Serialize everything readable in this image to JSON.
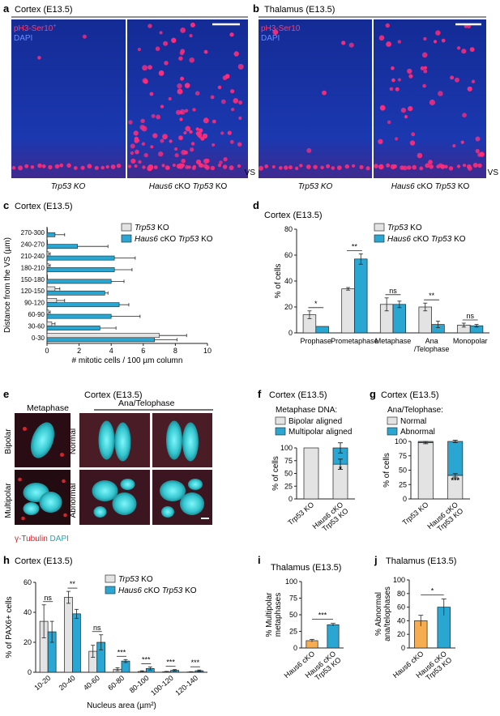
{
  "colors": {
    "ctrl": "#e3e3e3",
    "cko": "#29a7d2",
    "haus": "#f6ad52",
    "mic_bg": "#132d9e",
    "pink": "#ff2c7a",
    "cyan": "#39c9cf",
    "tubulin_red": "#d3262c",
    "ana_bg": "#4a1c26"
  },
  "panel_labels": {
    "a": "a",
    "b": "b",
    "c": "c",
    "d": "d",
    "e": "e",
    "f": "f",
    "g": "g",
    "h": "h",
    "i": "i",
    "j": "j"
  },
  "panel_a": {
    "title": "Cortex (E13.5)",
    "stain1": "pH3-Ser10",
    "stain1_sup": "+",
    "stain2": "DAPI",
    "left_label": "Trp53 KO",
    "right_label_i": "Haus6",
    "right_label": "cKO",
    "right_label_i2": "Trp53",
    "right_label_end": "KO",
    "vs": "VS"
  },
  "panel_b": {
    "title": "Thalamus (E13.5)",
    "stain1": "pH3-Ser10",
    "stain2": "DAPI",
    "left_label": "Trp53 KO",
    "right_label_i": "Haus6",
    "right_label": "cKO",
    "right_label_i2": "Trp53",
    "right_label_end": "KO",
    "vs": "VS"
  },
  "legend": {
    "ctrl_i": "Trp53",
    "ctrl": "KO",
    "cko_i": "Haus6",
    "cko_mid": "cKO",
    "cko_i2": "Trp53",
    "cko_end": "KO"
  },
  "panel_c": {
    "title": "Cortex (E13.5)",
    "chart_data": {
      "type": "bar",
      "orientation": "horizontal",
      "ylabel": "Distance from the VS (µm)",
      "xlabel": "# mitotic cells / 100 µm column",
      "xlim": [
        0,
        10
      ],
      "xticks": [
        "0",
        "2",
        "4",
        "6",
        "8",
        "10"
      ],
      "categories": [
        "270-300",
        "240-270",
        "210-240",
        "180-210",
        "150-180",
        "120-150",
        "90-120",
        "60-90",
        "30-60",
        "0-30"
      ],
      "series": [
        {
          "name": "Trp53 KO",
          "values": [
            0,
            0,
            0.1,
            0.1,
            0,
            0.5,
            0.6,
            0.1,
            0.3,
            7.0
          ],
          "err": [
            0,
            0,
            0.1,
            0.1,
            0,
            0.3,
            0.5,
            0.1,
            0.2,
            1.7
          ]
        },
        {
          "name": "Haus6 cKO Trp53 KO",
          "values": [
            0.5,
            1.9,
            4.2,
            4.2,
            4.0,
            3.6,
            4.5,
            4.0,
            3.3,
            6.7
          ],
          "err": [
            0.6,
            1.9,
            1.3,
            1.1,
            0.8,
            0.2,
            0.6,
            1.8,
            1.0,
            1.4
          ]
        }
      ]
    }
  },
  "panel_d": {
    "title": "Cortex (E13.5)",
    "chart_data": {
      "type": "bar",
      "ylabel": "% of cells",
      "ylim": [
        0,
        80
      ],
      "yticks": [
        "0",
        "20",
        "40",
        "60",
        "80"
      ],
      "categories": [
        "Prophase",
        "Prometaphase",
        "Metaphase",
        "Ana /Telophase",
        "Monopolar"
      ],
      "cat_lines": [
        [
          "Prophase"
        ],
        [
          "Prometaphase"
        ],
        [
          "Metaphase"
        ],
        [
          "Ana",
          "/Telophase"
        ],
        [
          "Monopolar"
        ]
      ],
      "series": [
        {
          "name": "Trp53 KO",
          "values": [
            14,
            34,
            22,
            20,
            6
          ],
          "err": [
            3,
            1,
            5,
            3,
            1.5
          ]
        },
        {
          "name": "Haus6 cKO Trp53 KO",
          "values": [
            5,
            57,
            22,
            6.5,
            5.5
          ],
          "err": [
            0,
            4,
            2.5,
            2.5,
            1
          ]
        }
      ],
      "sig": [
        "*",
        "**",
        "ns",
        "**",
        "ns"
      ]
    }
  },
  "panel_e": {
    "title": "Cortex (E13.5)",
    "metaphase": "Metaphase",
    "anatelo": "Ana/Telophase",
    "bipolar": "Bipolar",
    "multipolar": "Multipolar",
    "normal": "Normal",
    "abnormal": "Abnormal",
    "legend_red": "γ-Tubulin",
    "legend_cyan": "DAPI"
  },
  "panel_f": {
    "title": "Cortex (E13.5)",
    "subtitle": "Metaphase DNA:",
    "leg1": "Bipolar aligned",
    "leg2": "Multipolar aligned",
    "chart_data": {
      "type": "bar",
      "stacked": true,
      "ylabel": "% of cells",
      "ylim": [
        0,
        100
      ],
      "yticks": [
        "0",
        "25",
        "50",
        "75",
        "100"
      ],
      "categories": [
        "Trp53 KO",
        "Haus6 cKO Trp53 KO"
      ],
      "cat_lines": [
        [
          "Trp53 KO"
        ],
        [
          "Haus6 cKO",
          "Trp53 KO"
        ]
      ],
      "series": [
        {
          "name": "Bipolar aligned",
          "values": [
            100,
            68
          ]
        },
        {
          "name": "Multipolar aligned",
          "values": [
            0,
            32
          ]
        }
      ],
      "sig": "*"
    }
  },
  "panel_g": {
    "title": "Cortex (E13.5)",
    "subtitle": "Ana/Telophase:",
    "leg1": "Normal",
    "leg2": "Abnormal",
    "chart_data": {
      "type": "bar",
      "stacked": true,
      "ylabel": "% of cells",
      "ylim": [
        0,
        100
      ],
      "yticks": [
        "0",
        "25",
        "50",
        "75",
        "100"
      ],
      "categories": [
        "Trp53 KO",
        "Haus6 cKO Trp53 KO"
      ],
      "cat_lines": [
        [
          "Trp53 KO"
        ],
        [
          "Haus6 cKO",
          "Trp53 KO"
        ]
      ],
      "series": [
        {
          "name": "Normal",
          "values": [
            98,
            41
          ]
        },
        {
          "name": "Abnormal",
          "values": [
            2,
            59
          ]
        }
      ],
      "sig": "***"
    }
  },
  "panel_h": {
    "title": "Cortex (E13.5)",
    "chart_data": {
      "type": "bar",
      "ylabel": "% of PAX6+ cells",
      "xlabel": "Nucleus area (µm²)",
      "ylim": [
        0,
        60
      ],
      "yticks": [
        "0",
        "20",
        "40",
        "60"
      ],
      "categories": [
        "10-20",
        "20-40",
        "40-60",
        "60-80",
        "80-100",
        "100-120",
        "120-140"
      ],
      "series": [
        {
          "name": "Trp53 KO",
          "values": [
            34,
            50,
            14,
            2,
            0.5,
            0.3,
            0.2
          ],
          "err": [
            11,
            4,
            4,
            1,
            0.5,
            0.3,
            0.2
          ]
        },
        {
          "name": "Haus6 cKO Trp53 KO",
          "values": [
            27,
            39,
            20,
            7.5,
            2.5,
            1.3,
            1
          ],
          "err": [
            7,
            3,
            5,
            1,
            1,
            0.5,
            0.5
          ]
        }
      ],
      "sig": [
        "ns",
        "**",
        "ns",
        "***",
        "***",
        "***",
        "***"
      ]
    }
  },
  "panel_i": {
    "title": "Thalamus (E13.5)",
    "chart_data": {
      "type": "bar",
      "ylabel": "% Multipolar metaphases",
      "ylim": [
        0,
        100
      ],
      "yticks": [
        "0",
        "25",
        "50",
        "75",
        "100"
      ],
      "categories": [
        "Haus6 cKO",
        "Haus6 cKO Trp53 KO"
      ],
      "cat_lines": [
        [
          "Haus6 cKO"
        ],
        [
          "Haus6 cKO",
          "Trp53 KO"
        ]
      ],
      "values": [
        11,
        35
      ],
      "err": [
        2,
        2
      ],
      "sig": "***"
    }
  },
  "panel_j": {
    "title": "Thalamus (E13.5)",
    "chart_data": {
      "type": "bar",
      "ylabel": "% Abnormal ana/telophases",
      "ylim": [
        0,
        100
      ],
      "yticks": [
        "0",
        "20",
        "40",
        "60",
        "80",
        "100"
      ],
      "categories": [
        "Haus6 cKO",
        "Haus6 cKO Trp53 KO"
      ],
      "cat_lines": [
        [
          "Haus6 cKO"
        ],
        [
          "Haus6 cKO",
          "Trp53 KO"
        ]
      ],
      "values": [
        40,
        60
      ],
      "err": [
        8,
        12
      ],
      "sig": "*"
    }
  }
}
